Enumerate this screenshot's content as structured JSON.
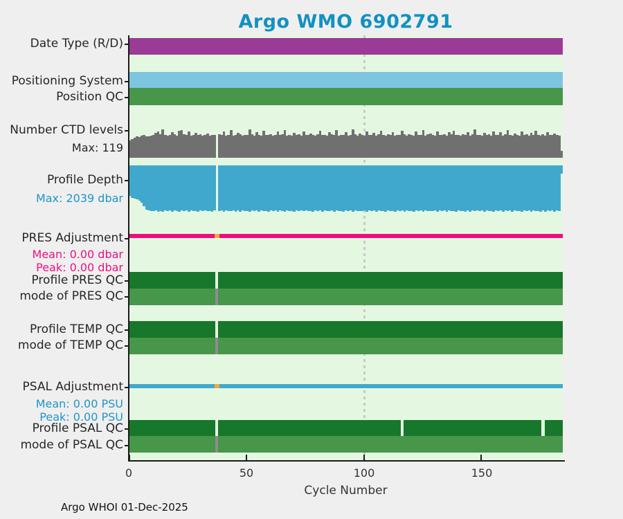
{
  "title": "Argo WMO 6902791",
  "footer": "Argo WHOI 01-Dec-2025",
  "row_labels": {
    "date_type": "Date Type (R/D)",
    "positioning_system": "Positioning System",
    "position_qc": "Position QC",
    "ctd_levels": "Number CTD levels",
    "ctd_levels_max": "Max: 119",
    "profile_depth": "Profile Depth",
    "profile_depth_max": "Max: 2039 dbar",
    "pres_adjustment": "PRES Adjustment",
    "pres_mean": "Mean: 0.00 dbar",
    "pres_peak": "Peak: 0.00 dbar",
    "profile_pres_qc": "Profile PRES QC",
    "mode_pres_qc": "mode of PRES QC",
    "profile_temp_qc": "Profile TEMP QC",
    "mode_temp_qc": "mode of TEMP QC",
    "psal_adjustment": "PSAL Adjustment",
    "psal_mean": "Mean: 0.00 PSU",
    "psal_peak": "Peak: 0.00 PSU",
    "profile_psal_qc": "Profile PSAL QC",
    "mode_psal_qc": "mode of PSAL QC"
  },
  "colors": {
    "title": "#1291c1",
    "date_type": "#9b3a97",
    "positioning_system": "#7ec5e0",
    "position_qc": "#47964a",
    "ctd_bar": "#707070",
    "depth_bar": "#41a8cd",
    "pres_line": "#ee0d7e",
    "qc_dark": "#17772a",
    "qc_mode": "#47964a",
    "psal_line": "#41a8cd",
    "missing_gray": "#8d8d8d",
    "anomaly_orange": "#f2a93d",
    "plot_bg": "#e4f8e1",
    "page_bg": "#efefef",
    "grid": "#c8c8c8",
    "stat_blue": "#1e96c8",
    "stat_pink": "#ee1081"
  },
  "chart_data": {
    "type": "bar",
    "title": "Argo WMO 6902791",
    "xlabel": "Cycle Number",
    "x_tick_labels": [
      "0",
      "50",
      "100",
      "150"
    ],
    "x_tick_values": [
      0,
      50,
      100,
      150
    ],
    "x_range": [
      0,
      185
    ],
    "n_cycles": 185,
    "grid_line_at_cycle": 100,
    "status_rows": [
      {
        "key": "date_type",
        "value": "constant",
        "color_key": "date_type"
      },
      {
        "key": "positioning_system",
        "value": "constant",
        "color_key": "positioning_system"
      },
      {
        "key": "position_qc",
        "value": "constant",
        "color_key": "position_qc"
      },
      {
        "key": "pres_adjustment",
        "mean_dbar": 0.0,
        "peak_dbar": 0.0,
        "color_key": "pres_line"
      },
      {
        "key": "profile_pres_qc",
        "value": "constant",
        "color_key": "qc_dark"
      },
      {
        "key": "mode_pres_qc",
        "value": "constant",
        "color_key": "qc_mode"
      },
      {
        "key": "profile_temp_qc",
        "value": "constant",
        "color_key": "qc_dark"
      },
      {
        "key": "mode_temp_qc",
        "value": "constant",
        "color_key": "qc_mode"
      },
      {
        "key": "psal_adjustment",
        "mean_psu": 0.0,
        "peak_psu": 0.0,
        "color_key": "psal_line"
      },
      {
        "key": "profile_psal_qc",
        "value": "constant",
        "color_key": "qc_dark"
      },
      {
        "key": "mode_psal_qc",
        "value": "constant",
        "color_key": "qc_mode"
      }
    ],
    "qc_gaps": {
      "profile_pres_qc": [
        38
      ],
      "profile_temp_qc": [
        38
      ],
      "profile_psal_qc": [
        38,
        117,
        177
      ]
    },
    "mode_gray_cycles": {
      "mode_pres_qc": [
        38
      ],
      "mode_temp_qc": [
        38
      ],
      "mode_psal_qc": [
        38
      ]
    },
    "adjustment_orange_cycles": [
      38
    ],
    "series": [
      {
        "name": "Number CTD levels",
        "max": 119,
        "values": [
          72,
          78,
          83,
          90,
          88,
          92,
          95,
          91,
          89,
          93,
          96,
          104,
          110,
          98,
          119,
          97,
          92,
          95,
          108,
          100,
          94,
          112,
          117,
          99,
          96,
          110,
          93,
          97,
          105,
          95,
          98,
          92,
          96,
          103,
          94,
          97,
          95,
          null,
          99,
          96,
          110,
          94,
          97,
          115,
          92,
          96,
          104,
          98,
          93,
          97,
          95,
          119,
          99,
          94,
          107,
          96,
          92,
          112,
          97,
          95,
          100,
          93,
          96,
          109,
          95,
          98,
          116,
          94,
          97,
          92,
          105,
          96,
          99,
          93,
          111,
          97,
          95,
          102,
          96,
          94,
          98,
          113,
          95,
          97,
          92,
          106,
          99,
          96,
          117,
          94,
          97,
          95,
          108,
          93,
          96,
          119,
          98,
          94,
          101,
          96,
          93,
          110,
          97,
          95,
          104,
          92,
          98,
          114,
          96,
          94,
          99,
          96,
          107,
          93,
          97,
          95,
          112,
          98,
          94,
          100,
          96,
          92,
          109,
          97,
          95,
          116,
          93,
          98,
          103,
          96,
          94,
          111,
          97,
          95,
          99,
          92,
          106,
          98,
          113,
          95,
          97,
          93,
          100,
          96,
          108,
          94,
          98,
          119,
          95,
          97,
          92,
          104,
          96,
          99,
          93,
          110,
          97,
          95,
          107,
          94,
          98,
          115,
          96,
          92,
          101,
          97,
          94,
          109,
          95,
          98,
          93,
          105,
          97,
          112,
          96,
          94,
          99,
          92,
          108,
          96,
          95,
          102,
          97,
          93,
          30
        ]
      },
      {
        "name": "Profile Depth (dbar)",
        "max": 2039,
        "values": [
          1340,
          1420,
          1450,
          1490,
          1560,
          1640,
          1790,
          1950,
          1980,
          2000,
          2010,
          1985,
          2030,
          1995,
          2039,
          1970,
          2005,
          1990,
          2025,
          1980,
          2000,
          2035,
          1975,
          2010,
          1990,
          2028,
          1965,
          2015,
          1995,
          2032,
          1985,
          2005,
          1970,
          2020,
          1998,
          2030,
          1988,
          null,
          2012,
          1992,
          2035,
          1978,
          2018,
          2000,
          1968,
          2025,
          1990,
          2038,
          1982,
          2008,
          1995,
          2030,
          1975,
          2015,
          1988,
          2039,
          1970,
          2010,
          1996,
          2028,
          1980,
          2018,
          1992,
          2032,
          1972,
          2005,
          2025,
          1985,
          2012,
          1995,
          2035,
          1978,
          2008,
          1990,
          2022,
          1968,
          2015,
          1998,
          2030,
          1982,
          2010,
          1992,
          2038,
          1975,
          2018,
          2000,
          1970,
          2026,
          1988,
          2014,
          1996,
          2032,
          1978,
          2012,
          1990,
          2039,
          1972,
          2020,
          1998,
          2008,
          1985,
          2028,
          1970,
          2016,
          1992,
          2034,
          1980,
          2006,
          1994,
          2024,
          1976,
          2012,
          1998,
          2030,
          1984,
          2018,
          1968,
          2036,
          1990,
          2010,
          1995,
          2026,
          1978,
          2014,
          1988,
          2032,
          1974,
          2008,
          1996,
          2020,
          1982,
          2038,
          1970,
          2016,
          1992,
          2028,
          1980,
          2004,
          1994,
          2034,
          1976,
          2010,
          1998,
          2024,
          1986,
          2039,
          1972,
          2018,
          1990,
          2006,
          1984,
          2030,
          1974,
          2012,
          1996,
          2026,
          1978,
          2016,
          1988,
          2036,
          1970,
          2008,
          1992,
          2032,
          1980,
          2014,
          1998,
          2028,
          1976,
          2018,
          1986,
          2034,
          1972,
          2010,
          1994,
          2024,
          1982,
          2038,
          1968,
          2012,
          1990,
          2030,
          1978,
          2016,
          380
        ]
      }
    ]
  }
}
